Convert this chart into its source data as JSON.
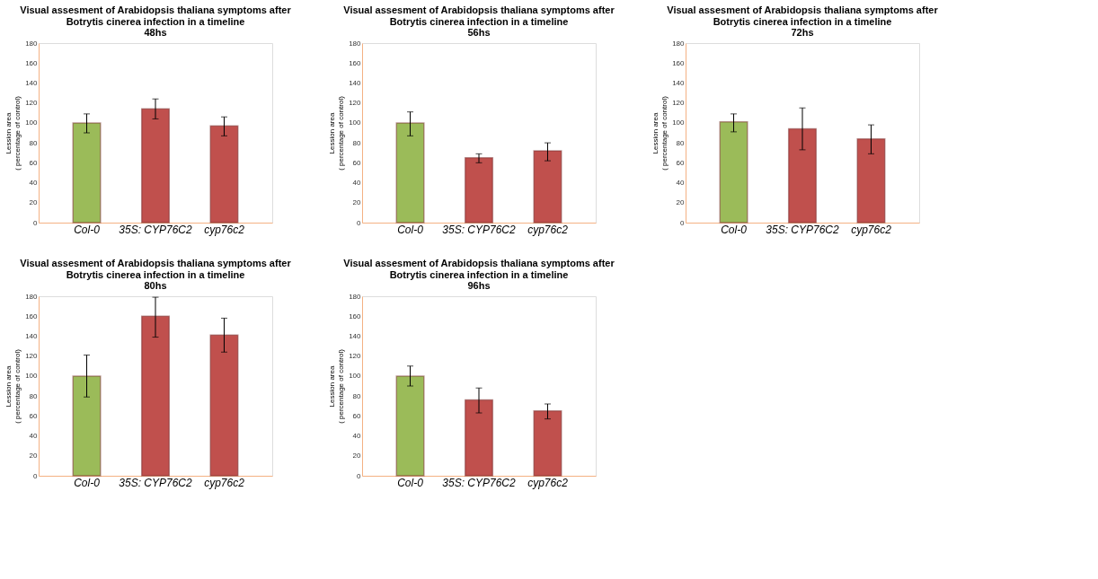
{
  "chart_data": [
    {
      "type": "bar",
      "title": "Visual assesment of Arabidopsis thaliana symptoms after Botrytis cinerea infection in a timeline",
      "subtitle": "48hs",
      "ylabel": "Lession area\n( percentage of control)",
      "categories": [
        "Col-0",
        "35S: CYP76C2",
        "cyp76c2"
      ],
      "values": [
        100,
        114,
        97
      ],
      "colors": [
        "#9bbb59",
        "#c0504d",
        "#c0504d"
      ],
      "errors": [
        [
          90,
          109
        ],
        [
          104,
          124
        ],
        [
          87,
          106
        ]
      ],
      "ylim": [
        0,
        180
      ],
      "yticks": [
        0,
        20,
        40,
        60,
        80,
        100,
        120,
        140,
        160,
        180
      ],
      "grid": false
    },
    {
      "type": "bar",
      "title": "Visual assesment of Arabidopsis thaliana symptoms after Botrytis cinerea infection in a timeline",
      "subtitle": "56hs",
      "ylabel": "Lession area\n( percentage of control)",
      "categories": [
        "Col-0",
        "35S: CYP76C2",
        "cyp76c2"
      ],
      "values": [
        100,
        65,
        72
      ],
      "colors": [
        "#9bbb59",
        "#c0504d",
        "#c0504d"
      ],
      "errors": [
        [
          87,
          111
        ],
        [
          60,
          69
        ],
        [
          62,
          80
        ]
      ],
      "ylim": [
        0,
        180
      ],
      "yticks": [
        0,
        20,
        40,
        60,
        80,
        100,
        120,
        140,
        160,
        180
      ],
      "grid": false
    },
    {
      "type": "bar",
      "title": "Visual assesment of Arabidopsis thaliana symptoms after Botrytis cinerea infection in a timeline",
      "subtitle": "72hs",
      "ylabel": "Lession area\n( percentage of control)",
      "categories": [
        "Col-0",
        "35S: CYP76C2",
        "cyp76c2"
      ],
      "values": [
        101,
        94,
        84
      ],
      "colors": [
        "#9bbb59",
        "#c0504d",
        "#c0504d"
      ],
      "errors": [
        [
          91,
          109
        ],
        [
          73,
          115
        ],
        [
          69,
          98
        ]
      ],
      "ylim": [
        0,
        180
      ],
      "yticks": [
        0,
        20,
        40,
        60,
        80,
        100,
        120,
        140,
        160,
        180
      ],
      "grid": false
    },
    {
      "type": "bar",
      "title": "Visual assesment of Arabidopsis thaliana symptoms after Botrytis cinerea infection in a timeline",
      "subtitle": "80hs",
      "ylabel": "Lession area\n( percentage of control)",
      "categories": [
        "Col-0",
        "35S: CYP76C2",
        "cyp76c2"
      ],
      "values": [
        100,
        160,
        141
      ],
      "colors": [
        "#9bbb59",
        "#c0504d",
        "#c0504d"
      ],
      "errors": [
        [
          79,
          121
        ],
        [
          139,
          179
        ],
        [
          124,
          158
        ]
      ],
      "ylim": [
        0,
        180
      ],
      "yticks": [
        0,
        20,
        40,
        60,
        80,
        100,
        120,
        140,
        160,
        180
      ],
      "grid": false
    },
    {
      "type": "bar",
      "title": "Visual assesment of Arabidopsis thaliana symptoms after Botrytis cinerea infection in a timeline",
      "subtitle": "96hs",
      "ylabel": "Lession area\n( percentage of control)",
      "categories": [
        "Col-0",
        "35S: CYP76C2",
        "cyp76c2"
      ],
      "values": [
        100,
        76,
        65
      ],
      "colors": [
        "#9bbb59",
        "#c0504d",
        "#c0504d"
      ],
      "errors": [
        [
          90,
          110
        ],
        [
          63,
          88
        ],
        [
          57,
          72
        ]
      ],
      "ylim": [
        0,
        180
      ],
      "yticks": [
        0,
        20,
        40,
        60,
        80,
        100,
        120,
        140,
        160,
        180
      ],
      "grid": false
    }
  ]
}
